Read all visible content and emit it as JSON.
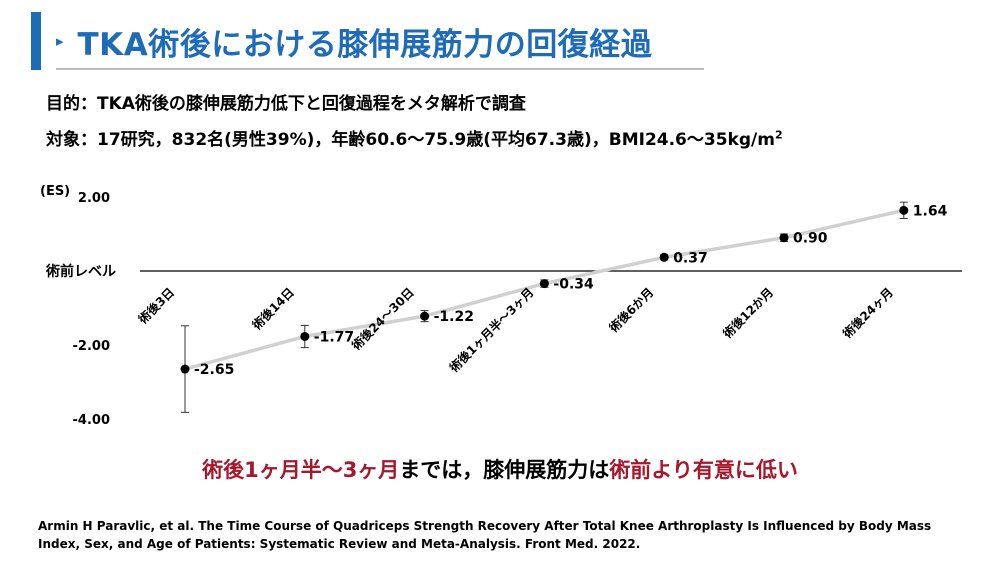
{
  "slide": {
    "title_marker": "▸",
    "title": "TKA術後における膝伸展筋力の回復経過",
    "purpose": "目的：TKA術後の膝伸展筋力低下と回復過程をメタ解析で調査",
    "subjects_text": "対象：17研究，832名(男性39%)，年齢60.6～75.9歳(平均67.3歳)，BMI24.6～35kg/m",
    "subjects_sup": "2",
    "conclusion_red1": "術後1ヶ月半～3ヶ月",
    "conclusion_mid": "までは，膝伸展筋力は",
    "conclusion_red2": "術前より有意に低い",
    "citation": "Armin H Paravlic, et al. The Time Course of Quadriceps Strength Recovery After Total Knee Arthroplasty Is Influenced by Body Mass Index, Sex, and Age of Patients: Systematic Review and Meta-Analysis. Front Med. 2022."
  },
  "colors": {
    "title": "#1e6bb8",
    "accent_red": "#a6172b",
    "trend_line": "#d0d0d0",
    "points": "#000000"
  },
  "chart_data": {
    "type": "line",
    "ylabel": "(ES)",
    "yticks": [
      "2.00",
      "-2.00",
      "-4.00"
    ],
    "ytick_values": [
      2,
      -2,
      -4
    ],
    "ylim": [
      -4,
      2
    ],
    "baseline_label": "術前レベル",
    "baseline_value": 0,
    "grid": false,
    "categories": [
      "術後3日",
      "術後14日",
      "術後24～30日",
      "術後1ヶ月半～3ヶ月",
      "術後6か月",
      "術後12か月",
      "術後24ヶ月"
    ],
    "values": [
      -2.65,
      -1.77,
      -1.22,
      -0.34,
      0.37,
      0.9,
      1.64
    ],
    "data_labels": [
      "-2.65",
      "-1.77",
      "-1.22",
      "-0.34",
      "0.37",
      "0.90",
      "1.64"
    ],
    "ci_lower": [
      -3.82,
      -2.07,
      -1.37,
      -0.44,
      0.3,
      0.8,
      1.42
    ],
    "ci_upper": [
      -1.48,
      -1.47,
      -1.07,
      -0.24,
      0.44,
      1.0,
      1.86
    ]
  }
}
